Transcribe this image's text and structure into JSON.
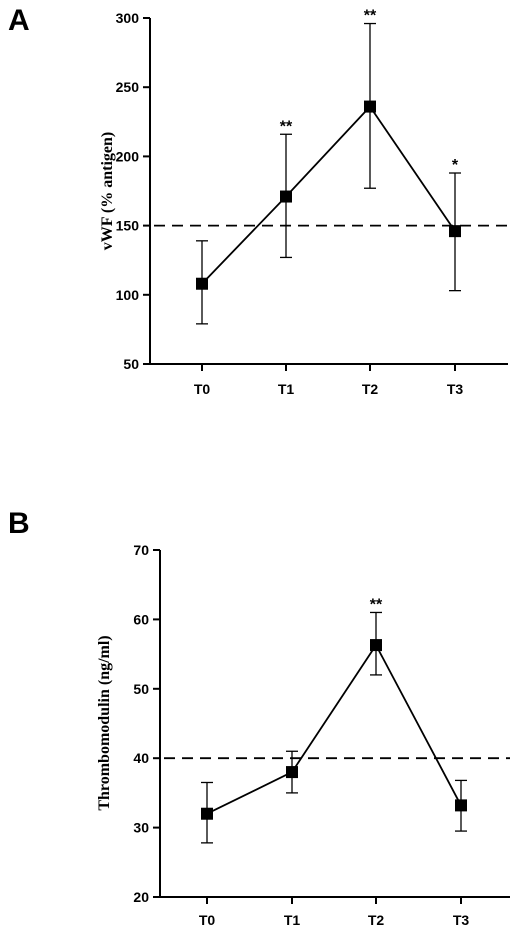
{
  "chart_data": [
    {
      "type": "line",
      "panel_label": "A",
      "categories": [
        "T0",
        "T1",
        "T2",
        "T3"
      ],
      "values": [
        108,
        171,
        236,
        146
      ],
      "error_upper": [
        139,
        216,
        296,
        188
      ],
      "error_lower": [
        79,
        127,
        177,
        103
      ],
      "annotations": [
        "",
        "**",
        "**",
        "*"
      ],
      "reference_line": 150,
      "ylabel": "vWF (% antigen)",
      "xlabel": "",
      "ylim": [
        50,
        300
      ],
      "yticks": [
        "50",
        "100",
        "150",
        "200",
        "250",
        "300"
      ],
      "grid": false
    },
    {
      "type": "line",
      "panel_label": "B",
      "categories": [
        "T0",
        "T1",
        "T2",
        "T3"
      ],
      "values": [
        32,
        38,
        56.3,
        33.2
      ],
      "error_upper": [
        36.5,
        41,
        61,
        36.8
      ],
      "error_lower": [
        27.8,
        35,
        52,
        29.5
      ],
      "annotations": [
        "",
        "",
        "**",
        ""
      ],
      "reference_line": 40,
      "ylabel": "Thrombomodulin (ng/ml)",
      "xlabel": "",
      "ylim": [
        20,
        70
      ],
      "yticks": [
        "20",
        "30",
        "40",
        "50",
        "60",
        "70"
      ],
      "grid": false
    }
  ],
  "colors": {
    "line": "#000000",
    "marker": "#000000",
    "background": "#ffffff"
  }
}
